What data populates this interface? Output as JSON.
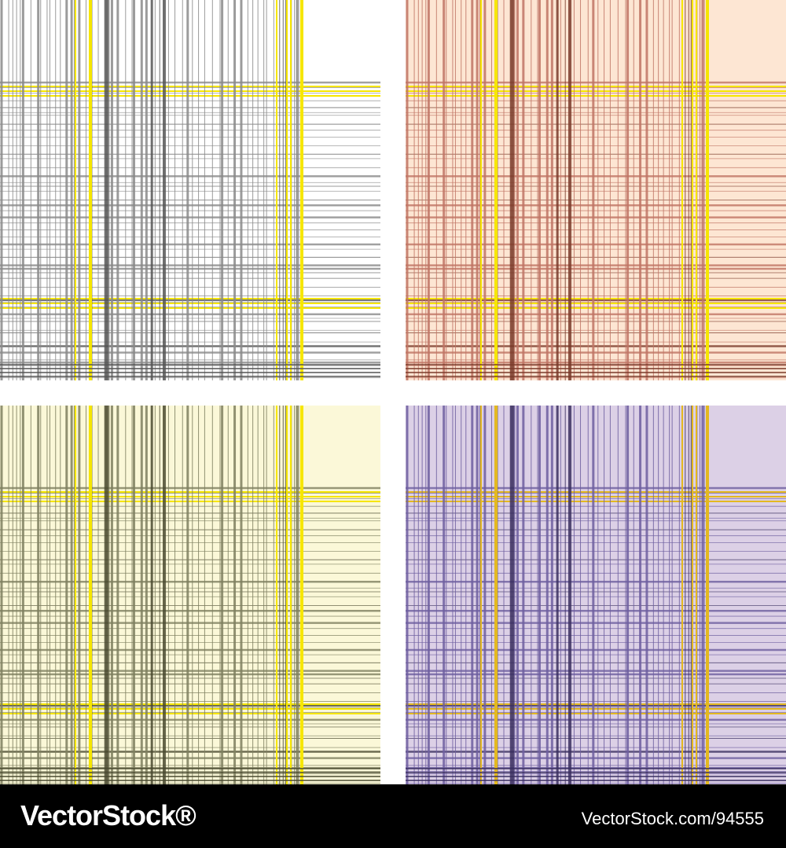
{
  "footer": {
    "brand": "VectorStock®",
    "url": "VectorStock.com/94555"
  }
}
